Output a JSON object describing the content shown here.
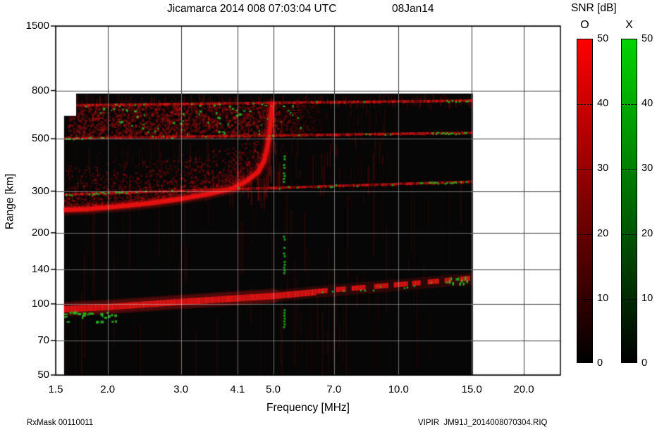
{
  "title": {
    "main": "Jicamarca 2014 008 07:03:04 UTC",
    "date": "08Jan14"
  },
  "footer": {
    "left": "RxMask 00110011",
    "right": "VIPIR  JM91J_2014008070304.RIQ"
  },
  "colorbar": {
    "title": "SNR [dB]",
    "bars": [
      {
        "label": "O",
        "color": "#ff0000"
      },
      {
        "label": "X",
        "color": "#00d400"
      }
    ],
    "tick_labels": [
      "50",
      "40",
      "30",
      "20",
      "10",
      "0"
    ],
    "ticks": [
      50,
      40,
      30,
      20,
      10,
      0
    ],
    "range_db": [
      0,
      50
    ]
  },
  "chart_data": {
    "type": "heatmap",
    "title": "Jicamarca 2014 008 07:03:04 UTC",
    "xlabel": "Frequency [MHz]",
    "ylabel": "Range [km]",
    "x_scale": "log",
    "y_scale": "log",
    "xlim": [
      1.5,
      24.5
    ],
    "ylim": [
      50,
      1500
    ],
    "grid": true,
    "x_ticks": [
      1.5,
      2.0,
      3.0,
      4.1,
      5.0,
      7.0,
      10.0,
      15.0,
      20.0
    ],
    "x_tick_labels": [
      "1.5",
      "2.0",
      "3.0",
      "4.1",
      "5.0",
      "7.0",
      "10.0",
      "15.0",
      "20.0"
    ],
    "y_ticks": [
      1500,
      800,
      500,
      300,
      200,
      140,
      100,
      70,
      50
    ],
    "y_tick_labels": [
      "1500",
      "800",
      "500",
      "300",
      "200",
      "140",
      "100",
      "70",
      "50"
    ],
    "snr_scale_db": [
      0,
      50
    ],
    "modes": [
      {
        "name": "O",
        "color": "#ff0000"
      },
      {
        "name": "X",
        "color": "#00d400"
      }
    ],
    "data_extent": {
      "f_mhz": [
        1.57,
        15.1
      ],
      "range_km": [
        50,
        777
      ],
      "top_strip_f_start": 1.68,
      "top_strip_range_km": [
        625,
        777
      ]
    },
    "features": {
      "background_color": "#060606",
      "green_color": "#22b822",
      "noise_regions": [
        {
          "f": [
            1.57,
            15.1
          ],
          "r": [
            50,
            625
          ],
          "density": 0.3,
          "alpha": [
            0.03,
            0.15
          ],
          "color": "#c01212",
          "seed": 11
        },
        {
          "f": [
            1.6,
            10.0
          ],
          "r": [
            300,
            498
          ],
          "density": 0.55,
          "alpha": [
            0.04,
            0.22
          ],
          "color": "#c01212",
          "seed": 12
        },
        {
          "f": [
            1.68,
            15.1
          ],
          "r": [
            700,
            772
          ],
          "density": 0.6,
          "alpha": [
            0.05,
            0.28
          ],
          "color": "#bb1111",
          "seed": 13
        },
        {
          "f": [
            4.05,
            5.18
          ],
          "r": [
            300,
            500
          ],
          "density": 0.9,
          "alpha": [
            0.1,
            0.4
          ],
          "color": "#cc1414",
          "seed": 14
        },
        {
          "f": [
            5.2,
            8.2
          ],
          "r": [
            58,
            290
          ],
          "density": 0.35,
          "alpha": [
            0.03,
            0.18
          ],
          "color": "#aa0f0f",
          "seed": 15
        }
      ],
      "cloud": {
        "f": [
          1.6,
          6.45
        ],
        "r": [
          512,
          700
        ],
        "n": 2800,
        "color": "#bb1212",
        "alpha": [
          0.07,
          0.45
        ],
        "seed": 16,
        "streak_ext": {
          "f": [
            6.45,
            9.9
          ],
          "density": 0.5,
          "alpha": [
            0.04,
            0.2
          ]
        }
      },
      "f_trace": {
        "points": [
          [
            1.57,
            250
          ],
          [
            1.8,
            252
          ],
          [
            2.1,
            258
          ],
          [
            2.5,
            266
          ],
          [
            3.0,
            278
          ],
          [
            3.5,
            292
          ],
          [
            4.0,
            308
          ],
          [
            4.3,
            330
          ],
          [
            4.6,
            362
          ],
          [
            4.75,
            402
          ],
          [
            4.85,
            465
          ],
          [
            4.92,
            565
          ],
          [
            4.97,
            700
          ]
        ],
        "color": "#ee1111",
        "core_width": 6,
        "glow_width": 16,
        "diffuse_n": 1900,
        "seed": 17
      },
      "e_trace": {
        "points": [
          [
            1.57,
            95
          ],
          [
            2.0,
            97
          ],
          [
            3.0,
            102
          ],
          [
            5.0,
            108
          ],
          [
            7.0,
            114
          ],
          [
            10.0,
            120
          ],
          [
            13.0,
            125
          ],
          [
            15.05,
            128
          ]
        ],
        "color": "#ee1515",
        "core_width": 9,
        "solid_until_f": 6.3,
        "seed": 18,
        "green_patch": {
          "f": [
            13.2,
            14.65
          ],
          "r": [
            120,
            131
          ]
        },
        "green_start_blobs": {
          "f": [
            1.57,
            2.1
          ],
          "r": [
            84,
            93
          ],
          "n": 26
        },
        "green_speck_f": [
          5.5,
          15.0
        ]
      },
      "rfi_lines": [
        {
          "f": [
            1.57,
            15.1
          ],
          "r": [
            694,
            727
          ],
          "color": "#dd1313",
          "green_density": 0.05,
          "green_clusters": [
            [
              12.3,
              14.9
            ]
          ],
          "seed": 19
        },
        {
          "f": [
            1.57,
            15.1
          ],
          "r": [
            503,
            531
          ],
          "color": "#d51212",
          "green_density": 0.05,
          "green_clusters": [
            [
              1.57,
              1.95
            ],
            [
              12.0,
              14.6
            ]
          ],
          "seed": 20
        },
        {
          "f": [
            1.57,
            15.1
          ],
          "r": [
            291,
            330
          ],
          "color": "#d51212",
          "green_density": 0.08,
          "green_clusters": [
            [
              1.57,
              2.25
            ],
            [
              11.0,
              14.9
            ]
          ],
          "seed": 21
        }
      ],
      "green_vstripe": {
        "f": 5.3,
        "segments_r": [
          [
            330,
            425
          ],
          [
            131,
            200
          ],
          [
            79,
            95
          ]
        ],
        "color": "#1eb41e",
        "seed": 22
      },
      "green_specks": {
        "f": [
          1.9,
          5.8
        ],
        "r": [
          525,
          700
        ],
        "n": 60,
        "color": "#27b827",
        "seed": 23
      }
    }
  }
}
